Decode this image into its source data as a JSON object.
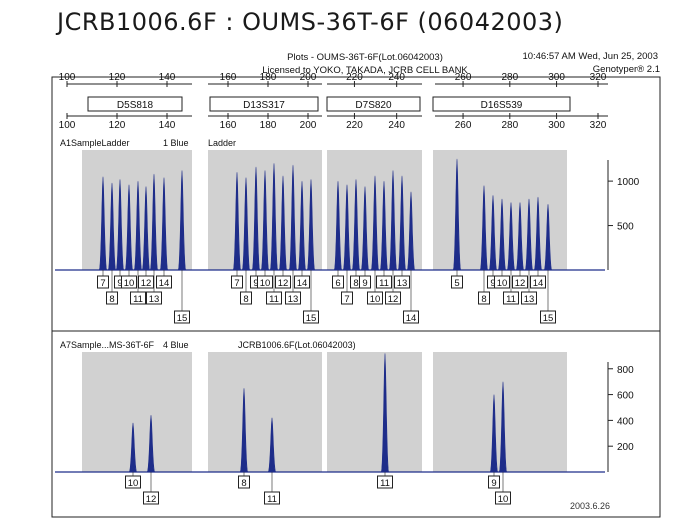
{
  "page": {
    "title": "JCRB1006.6F : OUMS-36T-6F (06042003)",
    "header_line1": "Plots  -  OUMS-36T-6F(Lot.06042003)",
    "header_line2": "Licensed to YOKO, TAKADA, JCRB CELL BANK",
    "timestamp": "10:46:57 AM  Wed, Jun 25, 2003",
    "software": "Genotyper® 2.1",
    "date_stamp": "2003.6.26"
  },
  "chart_data": [
    {
      "type": "electropherogram",
      "size_axis": {
        "ticks": [
          100,
          120,
          140,
          160,
          180,
          200,
          220,
          240,
          260,
          280,
          300,
          320
        ]
      },
      "markers": [
        "D5S818",
        "D13S317",
        "D7S820",
        "D16S539"
      ],
      "panels": [
        {
          "label_left": "A1SampleLadder",
          "label_channel": "1 Blue",
          "label_right": "Ladder",
          "y_ticks": [
            500,
            1000
          ],
          "y_max": 1350,
          "loci": [
            {
              "alleles": [
                "7",
                "8",
                "9",
                "10",
                "11",
                "12",
                "13",
                "14",
                "15"
              ],
              "values": [
                1050,
                980,
                1020,
                960,
                1000,
                940,
                1080,
                1040,
                1120
              ]
            },
            {
              "alleles": [
                "7",
                "8",
                "9",
                "10",
                "11",
                "12",
                "13",
                "14",
                "15"
              ],
              "values": [
                1100,
                1040,
                1160,
                1120,
                1200,
                1060,
                1180,
                1000,
                1020
              ]
            },
            {
              "alleles": [
                "6",
                "7",
                "8",
                "9",
                "10",
                "11",
                "12",
                "13",
                "14"
              ],
              "values": [
                1000,
                960,
                1020,
                940,
                1060,
                1000,
                1120,
                1060,
                880
              ]
            },
            {
              "alleles": [
                "5",
                "8",
                "9",
                "10",
                "11",
                "12",
                "13",
                "14",
                "15"
              ],
              "values": [
                1250,
                950,
                840,
                800,
                760,
                760,
                800,
                820,
                740
              ]
            }
          ]
        },
        {
          "label_left": "A7Sample...MS-36T-6F",
          "label_channel": "4 Blue",
          "label_right": "JCRB1006.6F(Lot.06042003)",
          "y_ticks": [
            200,
            400,
            600,
            800
          ],
          "y_max": 930,
          "loci": [
            {
              "alleles": [
                "10",
                "12"
              ],
              "values": [
                380,
                440
              ]
            },
            {
              "alleles": [
                "8",
                "11"
              ],
              "values": [
                650,
                420
              ]
            },
            {
              "alleles": [
                "11"
              ],
              "values": [
                920
              ]
            },
            {
              "alleles": [
                "9",
                "10"
              ],
              "values": [
                600,
                700
              ]
            }
          ]
        }
      ]
    }
  ]
}
